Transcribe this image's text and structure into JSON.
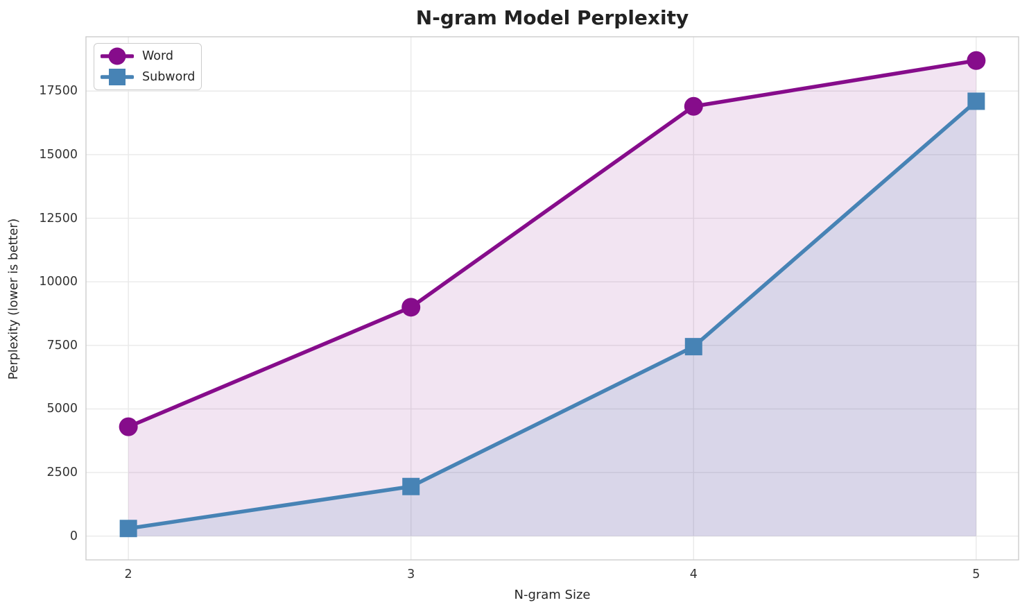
{
  "chart_data": {
    "type": "line",
    "title": "N-gram Model Perplexity",
    "xlabel": "N-gram Size",
    "ylabel": "Perplexity (lower is better)",
    "x": [
      2,
      3,
      4,
      5
    ],
    "series": [
      {
        "name": "Word",
        "marker": "circle",
        "color": "#860C8B",
        "fill_opacity": 0.11,
        "values": [
          4300,
          9000,
          16900,
          18700
        ]
      },
      {
        "name": "Subword",
        "marker": "square",
        "color": "#4783B5",
        "fill_opacity": 0.15,
        "values": [
          300,
          1950,
          7450,
          17100
        ]
      }
    ],
    "fill_baseline": 0,
    "xticks": [
      "2",
      "3",
      "4",
      "5"
    ],
    "xtick_values": [
      2,
      3,
      4,
      5
    ],
    "yticks": [
      "0",
      "2500",
      "5000",
      "7500",
      "10000",
      "12500",
      "15000",
      "17500"
    ],
    "ytick_values": [
      0,
      2500,
      5000,
      7500,
      10000,
      12500,
      15000,
      17500
    ],
    "xlim": [
      1.85,
      5.15
    ],
    "ylim": [
      -935,
      19635
    ],
    "grid": true,
    "legend_position": "top-left",
    "colors": {
      "grid": "#e9e9e9",
      "spine": "#cccccc",
      "background": "#ffffff",
      "title_text": "#222222",
      "tick_text": "#333333"
    }
  }
}
